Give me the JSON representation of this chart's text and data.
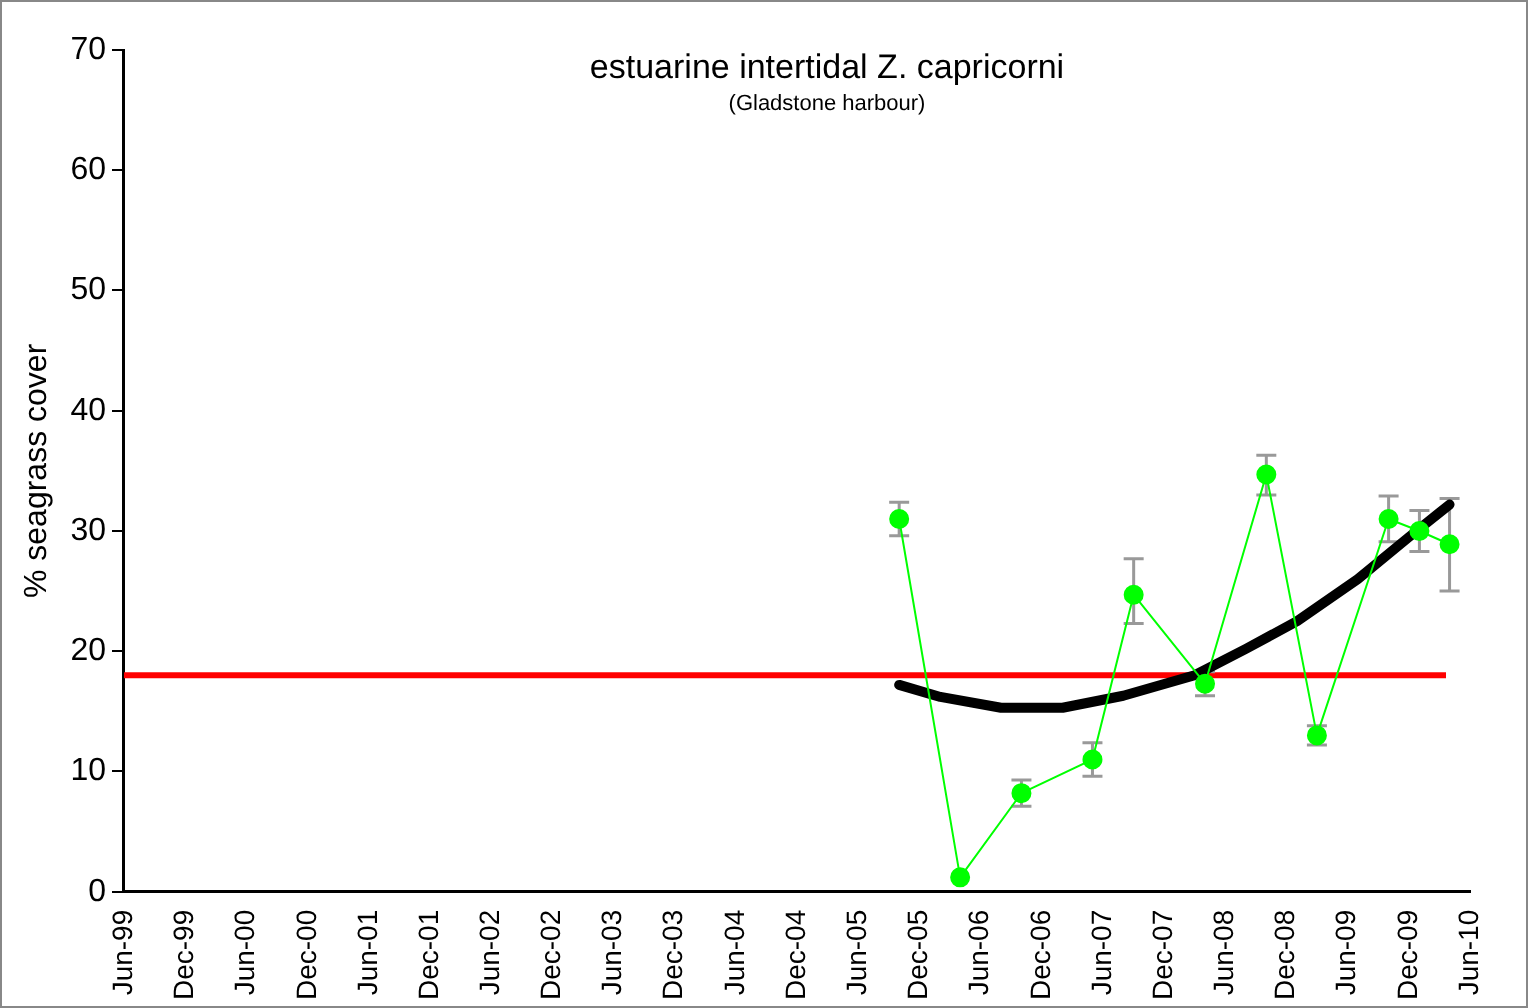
{
  "chart_data": {
    "type": "line",
    "title": "estuarine intertidal Z. capricorni",
    "subtitle": "(Gladstone harbour)",
    "ylabel": "% seagrass cover",
    "xlim": [
      "1999-06",
      "2010-06"
    ],
    "xticks": [
      {
        "value": "1999-06",
        "label": "Jun-99"
      },
      {
        "value": "1999-12",
        "label": "Dec-99"
      },
      {
        "value": "2000-06",
        "label": "Jun-00"
      },
      {
        "value": "2000-12",
        "label": "Dec-00"
      },
      {
        "value": "2001-06",
        "label": "Jun-01"
      },
      {
        "value": "2001-12",
        "label": "Dec-01"
      },
      {
        "value": "2002-06",
        "label": "Jun-02"
      },
      {
        "value": "2002-12",
        "label": "Dec-02"
      },
      {
        "value": "2003-06",
        "label": "Jun-03"
      },
      {
        "value": "2003-12",
        "label": "Dec-03"
      },
      {
        "value": "2004-06",
        "label": "Jun-04"
      },
      {
        "value": "2004-12",
        "label": "Dec-04"
      },
      {
        "value": "2005-06",
        "label": "Jun-05"
      },
      {
        "value": "2005-12",
        "label": "Dec-05"
      },
      {
        "value": "2006-06",
        "label": "Jun-06"
      },
      {
        "value": "2006-12",
        "label": "Dec-06"
      },
      {
        "value": "2007-06",
        "label": "Jun-07"
      },
      {
        "value": "2007-12",
        "label": "Dec-07"
      },
      {
        "value": "2008-06",
        "label": "Jun-08"
      },
      {
        "value": "2008-12",
        "label": "Dec-08"
      },
      {
        "value": "2009-06",
        "label": "Jun-09"
      },
      {
        "value": "2009-12",
        "label": "Dec-09"
      },
      {
        "value": "2010-06",
        "label": "Jun-10"
      }
    ],
    "ylim": [
      0,
      70
    ],
    "yticks": [
      0,
      10,
      20,
      30,
      40,
      50,
      60,
      70
    ],
    "grid": false,
    "legend": false,
    "series": [
      {
        "color": "#00ff00",
        "marker": "circle",
        "x": [
          "2005-10",
          "2006-04",
          "2006-10",
          "2007-05",
          "2007-09",
          "2008-04",
          "2008-10",
          "2009-03",
          "2009-10",
          "2010-01",
          "2010-04"
        ],
        "values": [
          31,
          1.2,
          8.2,
          11,
          24.7,
          17.3,
          34.7,
          13,
          31,
          30,
          28.9
        ],
        "errors": [
          1.4,
          null,
          1.1,
          1.4,
          [
            22.3,
            27.7
          ],
          1,
          [
            33,
            36.3
          ],
          0.8,
          1.9,
          [
            28.3,
            31.7
          ],
          [
            25,
            32.7
          ]
        ]
      },
      {
        "color": "#000000",
        "marker": "none",
        "x": [
          "2005-10",
          "2006-02",
          "2006-08",
          "2007-02",
          "2007-08",
          "2008-03",
          "2008-08",
          "2009-01",
          "2009-07",
          "2009-12",
          "2010-04"
        ],
        "values": [
          17.2,
          16.2,
          15.3,
          15.3,
          16.3,
          18,
          20.2,
          22.5,
          26,
          29.5,
          32.2
        ]
      }
    ],
    "ref_lines": [
      {
        "axis": "y",
        "value": 18,
        "color": "#ff0000"
      }
    ]
  }
}
